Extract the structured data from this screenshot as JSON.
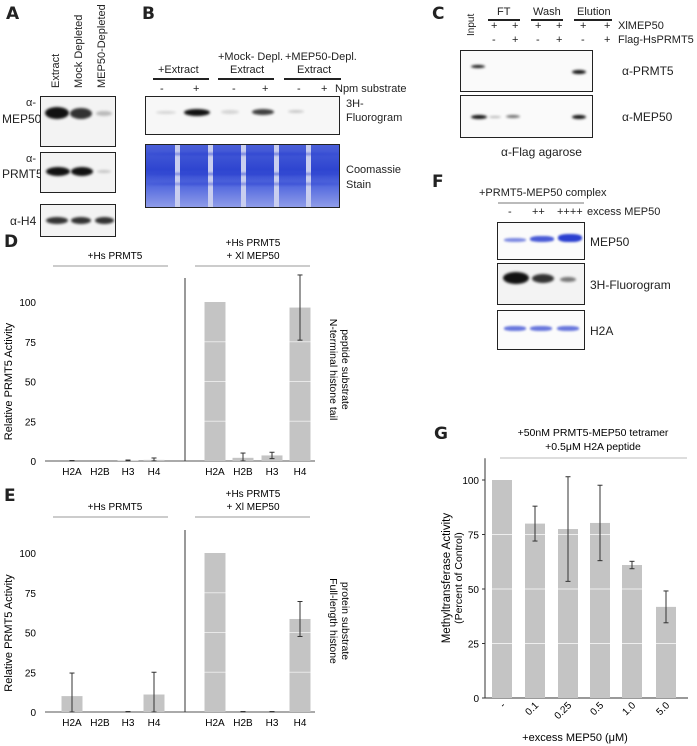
{
  "panels": {
    "A": "A",
    "B": "B",
    "C": "C",
    "D": "D",
    "E": "E",
    "F": "F",
    "G": "G"
  },
  "panel_a": {
    "lanes": [
      "Extract",
      "Mock Depleted",
      "MEP50-Depleted"
    ],
    "blots": [
      {
        "label1": "α-",
        "label2": "MEP50"
      },
      {
        "label1": "α-",
        "label2": "PRMT5"
      },
      {
        "label1": "α-H4"
      }
    ]
  },
  "panel_b": {
    "groups": [
      {
        "line1": "",
        "line2": "+Extract"
      },
      {
        "line1": "+Mock- Depl.",
        "line2": "Extract"
      },
      {
        "line1": "+MEP50-Depl.",
        "line2": "Extract"
      }
    ],
    "signs": [
      "-",
      "+",
      "-",
      "+",
      "-",
      "+"
    ],
    "row_label": "Npm substrate",
    "fluorogram_label": [
      "3H-",
      "Fluorogram"
    ],
    "stain_label": [
      "Coomassie",
      "Stain"
    ]
  },
  "panel_c": {
    "input_label": "Input",
    "groups": [
      "FT",
      "Wash",
      "Elution"
    ],
    "row1_signs": [
      "+",
      "+",
      "+",
      "+",
      "+",
      "+"
    ],
    "row2_signs": [
      "-",
      "+",
      "-",
      "+",
      "-",
      "+"
    ],
    "row1_label": "XlMEP50",
    "row2_label": "Flag-HsPRMT5",
    "blot_labels": [
      "α-PRMT5",
      "α-MEP50"
    ],
    "footer": "α-Flag agarose"
  },
  "panel_f": {
    "title": "+PRMT5-MEP50 complex",
    "signs": [
      "-",
      "++",
      "++++"
    ],
    "signs_label": "excess MEP50",
    "blot_labels": [
      "MEP50",
      "3H-Fluorogram",
      "H2A"
    ]
  },
  "colors": {
    "bar": "#c4c4c4",
    "coomassie": "#2e45d0"
  },
  "chart_data": [
    {
      "id": "D",
      "type": "bar",
      "ylabel": "Relative PRMT5 Activity",
      "side_label": [
        "N-terminal histone tail",
        "peptide substrate"
      ],
      "ylim": [
        0,
        115
      ],
      "yticks": [
        "0",
        "25",
        "50",
        "75",
        "100"
      ],
      "groups": [
        {
          "label": [
            "+Hs PRMT5"
          ],
          "categories": [
            "H2A",
            "H2B",
            "H3",
            "H4"
          ],
          "values": [
            0,
            0,
            0.3,
            0.7
          ],
          "errors": [
            0.3,
            0,
            0.3,
            1.2
          ]
        },
        {
          "label": [
            "+Hs PRMT5",
            "+ Xl MEP50"
          ],
          "categories": [
            "H2A",
            "H2B",
            "H3",
            "H4"
          ],
          "values": [
            100,
            2,
            3.5,
            96.5
          ],
          "errors": [
            0,
            3,
            2,
            20.5
          ]
        }
      ]
    },
    {
      "id": "E",
      "type": "bar",
      "ylabel": "Relative PRMT5 Activity",
      "side_label": [
        "Full-length histone",
        "protein substrate"
      ],
      "ylim": [
        0,
        115
      ],
      "yticks": [
        "0",
        "25",
        "50",
        "75",
        "100"
      ],
      "groups": [
        {
          "label": [
            "+Hs PRMT5"
          ],
          "categories": [
            "H2A",
            "H2B",
            "H3",
            "H4"
          ],
          "values": [
            10,
            0,
            0,
            11
          ],
          "errors": [
            14.5,
            0,
            0.3,
            14
          ]
        },
        {
          "label": [
            "+Hs PRMT5",
            "+ Xl MEP50"
          ],
          "categories": [
            "H2A",
            "H2B",
            "H3",
            "H4"
          ],
          "values": [
            100,
            0,
            0,
            58.5
          ],
          "errors": [
            0,
            0.3,
            0.3,
            11
          ]
        }
      ]
    },
    {
      "id": "G",
      "type": "bar",
      "title": [
        "+50nM PRMT5-MEP50 tetramer",
        "+0.5μM H2A peptide"
      ],
      "ylabel": [
        "Methyltransferase Activity",
        "(Percent of Control)"
      ],
      "xlabel": "+excess MEP50 (μM)",
      "ylim": [
        0,
        110
      ],
      "yticks": [
        "0",
        "25",
        "50",
        "75",
        "100"
      ],
      "categories": [
        "-",
        "0.1",
        "0.25",
        "0.5",
        "1.0",
        "5.0"
      ],
      "values": [
        100,
        80,
        77.5,
        80.3,
        61,
        41.8
      ],
      "errors": [
        0,
        8,
        24,
        17.3,
        1.7,
        7.3
      ]
    }
  ]
}
